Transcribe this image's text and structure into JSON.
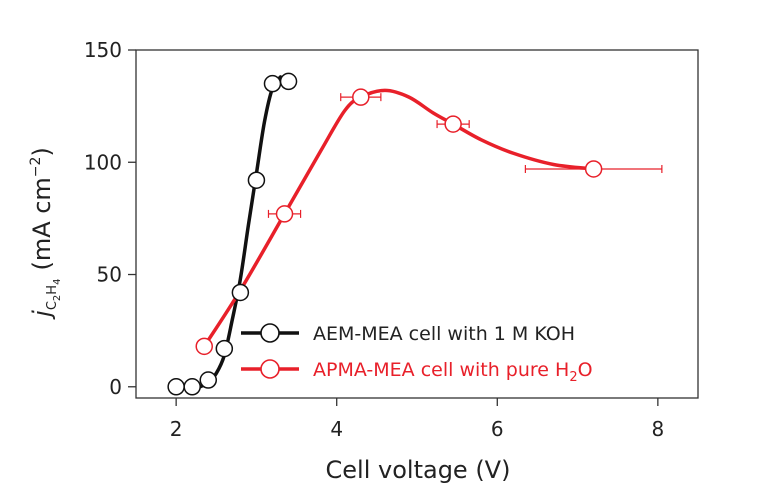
{
  "chart_data": {
    "type": "scatter",
    "xlabel": "Cell voltage (V)",
    "ylabel": {
      "symbol": "j",
      "subscript_parts": [
        "C",
        "2",
        "H",
        "4"
      ],
      "units": "(mA cm",
      "units_sup": "−2",
      "units_close": ")"
    },
    "xlim": [
      1.5,
      8.5
    ],
    "ylim": [
      -5,
      150
    ],
    "xticks": [
      2,
      4,
      6,
      8
    ],
    "yticks": [
      0,
      50,
      100,
      150
    ],
    "grid": false,
    "legend_position": "bottom-left",
    "series": [
      {
        "name": "AEM-MEA cell with 1 M KOH",
        "name_main": "AEM-MEA cell with 1 M KOH",
        "name_sub": "",
        "name_tail": "",
        "color": "#111111",
        "points": [
          {
            "x": 2.0,
            "y": 0
          },
          {
            "x": 2.2,
            "y": 0
          },
          {
            "x": 2.4,
            "y": 3
          },
          {
            "x": 2.6,
            "y": 17
          },
          {
            "x": 2.8,
            "y": 42
          },
          {
            "x": 3.0,
            "y": 92
          },
          {
            "x": 3.2,
            "y": 135
          },
          {
            "x": 3.4,
            "y": 136
          }
        ],
        "curve": [
          [
            2.3,
            0
          ],
          [
            2.4,
            2
          ],
          [
            2.5,
            6
          ],
          [
            2.6,
            14
          ],
          [
            2.7,
            30
          ],
          [
            2.8,
            48
          ],
          [
            2.9,
            72
          ],
          [
            3.0,
            95
          ],
          [
            3.1,
            118
          ],
          [
            3.2,
            133
          ],
          [
            3.3,
            138
          ]
        ]
      },
      {
        "name": "APMA-MEA cell with pure H2O",
        "name_main": "APMA-MEA cell with pure H",
        "name_sub": "2",
        "name_tail": "O",
        "color": "#e8202a",
        "points": [
          {
            "x": 2.35,
            "y": 18,
            "xerr": 0.05
          },
          {
            "x": 3.35,
            "y": 77,
            "xerr": 0.2
          },
          {
            "x": 4.3,
            "y": 129,
            "xerr": 0.25
          },
          {
            "x": 5.45,
            "y": 117,
            "xerr": 0.2
          },
          {
            "x": 7.2,
            "y": 97,
            "xerr": 0.85
          }
        ],
        "curve": [
          [
            2.35,
            18
          ],
          [
            2.8,
            43
          ],
          [
            3.35,
            77
          ],
          [
            3.8,
            105
          ],
          [
            4.1,
            123
          ],
          [
            4.3,
            129
          ],
          [
            4.6,
            132
          ],
          [
            4.9,
            129
          ],
          [
            5.2,
            122
          ],
          [
            5.45,
            117
          ],
          [
            5.8,
            110
          ],
          [
            6.2,
            104
          ],
          [
            6.7,
            99
          ],
          [
            7.2,
            97
          ]
        ]
      }
    ]
  }
}
